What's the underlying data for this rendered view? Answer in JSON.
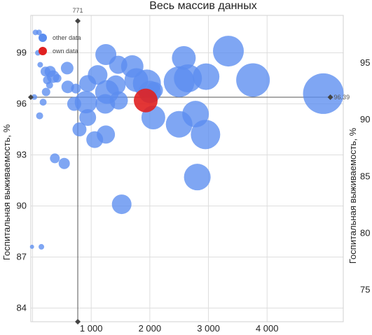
{
  "chart_data": {
    "type": "scatter",
    "title": "Весь массив данных",
    "ylabel": "Госпитальная выживаемость, %",
    "y2label": "Госпитальная выживаемость, %",
    "xlim": [
      -30,
      5300
    ],
    "ylim": [
      83.2,
      101.2
    ],
    "y2lim": [
      72.2,
      99.2
    ],
    "x_ticks": [
      {
        "v": 1000,
        "label": "1 000"
      },
      {
        "v": 2000,
        "label": "2 000"
      },
      {
        "v": 3000,
        "label": "3 000"
      },
      {
        "v": 4000,
        "label": "4 000"
      }
    ],
    "y_ticks": [
      {
        "v": 84,
        "label": "84"
      },
      {
        "v": 87,
        "label": "87"
      },
      {
        "v": 90,
        "label": "90"
      },
      {
        "v": 93,
        "label": "93"
      },
      {
        "v": 96,
        "label": "96"
      },
      {
        "v": 99,
        "label": "99"
      }
    ],
    "y2_ticks": [
      {
        "v": 75,
        "label": "75"
      },
      {
        "v": 80,
        "label": "80"
      },
      {
        "v": 85,
        "label": "85"
      },
      {
        "v": 90,
        "label": "90"
      },
      {
        "v": 95,
        "label": "95"
      }
    ],
    "grid": true,
    "legend": "top-left",
    "colors": {
      "other": "#5b8def",
      "own": "#e02020"
    },
    "reference_lines": {
      "vertical": {
        "x": 771,
        "label": "771"
      },
      "horizontal": {
        "y": 96.39,
        "label": "96.39"
      }
    },
    "series": [
      {
        "name": "other data",
        "points": [
          {
            "x": 50,
            "y": 100.2,
            "r": 4
          },
          {
            "x": 110,
            "y": 100.2,
            "r": 4
          },
          {
            "x": 90,
            "y": 99.0,
            "r": 4
          },
          {
            "x": 130,
            "y": 98.3,
            "r": 4
          },
          {
            "x": 220,
            "y": 97.9,
            "r": 7
          },
          {
            "x": 300,
            "y": 97.9,
            "r": 8
          },
          {
            "x": 350,
            "y": 97.6,
            "r": 9
          },
          {
            "x": 250,
            "y": 97.4,
            "r": 6
          },
          {
            "x": 420,
            "y": 97.5,
            "r": 6
          },
          {
            "x": 290,
            "y": 97.1,
            "r": 5
          },
          {
            "x": 230,
            "y": 96.7,
            "r": 6
          },
          {
            "x": 590,
            "y": 98.1,
            "r": 9
          },
          {
            "x": 600,
            "y": 97.0,
            "r": 9
          },
          {
            "x": 740,
            "y": 96.9,
            "r": 7
          },
          {
            "x": 30,
            "y": 96.4,
            "r": 4
          },
          {
            "x": 180,
            "y": 96.1,
            "r": 5
          },
          {
            "x": 120,
            "y": 95.3,
            "r": 5
          },
          {
            "x": 710,
            "y": 96.0,
            "r": 10
          },
          {
            "x": 940,
            "y": 97.2,
            "r": 12
          },
          {
            "x": 910,
            "y": 96.1,
            "r": 16
          },
          {
            "x": 940,
            "y": 95.2,
            "r": 12
          },
          {
            "x": 800,
            "y": 94.5,
            "r": 10
          },
          {
            "x": 1110,
            "y": 97.7,
            "r": 14
          },
          {
            "x": 1250,
            "y": 98.9,
            "r": 15
          },
          {
            "x": 1270,
            "y": 96.7,
            "r": 17
          },
          {
            "x": 1240,
            "y": 96.0,
            "r": 14
          },
          {
            "x": 1460,
            "y": 98.3,
            "r": 13
          },
          {
            "x": 1420,
            "y": 97.1,
            "r": 14
          },
          {
            "x": 1470,
            "y": 96.2,
            "r": 13
          },
          {
            "x": 1700,
            "y": 98.2,
            "r": 16
          },
          {
            "x": 1770,
            "y": 97.4,
            "r": 17
          },
          {
            "x": 1950,
            "y": 97.2,
            "r": 20
          },
          {
            "x": 2000,
            "y": 96.7,
            "r": 16
          },
          {
            "x": 2080,
            "y": 96.8,
            "r": 12
          },
          {
            "x": 2060,
            "y": 95.2,
            "r": 17
          },
          {
            "x": 1060,
            "y": 93.9,
            "r": 12
          },
          {
            "x": 1250,
            "y": 94.2,
            "r": 13
          },
          {
            "x": 2580,
            "y": 98.7,
            "r": 17
          },
          {
            "x": 2500,
            "y": 97.3,
            "r": 22
          },
          {
            "x": 2650,
            "y": 97.5,
            "r": 20
          },
          {
            "x": 2960,
            "y": 97.6,
            "r": 19
          },
          {
            "x": 3340,
            "y": 99.1,
            "r": 22
          },
          {
            "x": 2500,
            "y": 94.8,
            "r": 19
          },
          {
            "x": 2780,
            "y": 95.4,
            "r": 19
          },
          {
            "x": 2950,
            "y": 94.2,
            "r": 21
          },
          {
            "x": 2810,
            "y": 91.7,
            "r": 19
          },
          {
            "x": 3760,
            "y": 97.4,
            "r": 24
          },
          {
            "x": 4960,
            "y": 96.6,
            "r": 29
          },
          {
            "x": 1520,
            "y": 90.1,
            "r": 14
          },
          {
            "x": 380,
            "y": 92.8,
            "r": 7
          },
          {
            "x": 540,
            "y": 92.5,
            "r": 8
          },
          {
            "x": 150,
            "y": 87.6,
            "r": 4
          },
          {
            "x": -10,
            "y": 87.6,
            "r": 3
          }
        ]
      },
      {
        "name": "own data",
        "points": [
          {
            "x": 1930,
            "y": 96.2,
            "r": 17
          }
        ]
      }
    ]
  }
}
